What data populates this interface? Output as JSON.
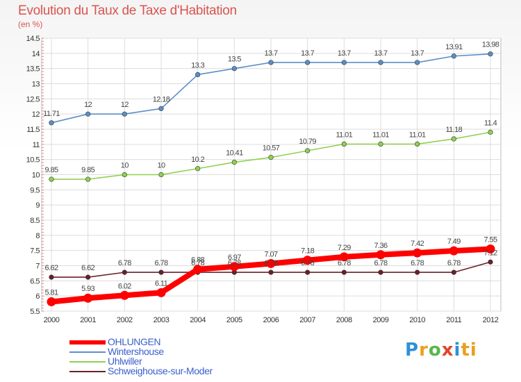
{
  "chart_data": {
    "type": "line",
    "title": "Evolution du Taux de Taxe d'Habitation",
    "subtitle": "(en %)",
    "categories": [
      "2000",
      "2001",
      "2002",
      "2003",
      "2004",
      "2005",
      "2006",
      "2007",
      "2008",
      "2009",
      "2010",
      "2011",
      "2012"
    ],
    "y_ticks": [
      "5.5",
      "6",
      "6.5",
      "7",
      "7.5",
      "8",
      "8.5",
      "9",
      "9.5",
      "10",
      "10.5",
      "11",
      "11.5",
      "12",
      "12.5",
      "13",
      "13.5",
      "14",
      "14.5"
    ],
    "ylim": [
      5.5,
      14.5
    ],
    "grid": true,
    "legend_position": "bottom-left",
    "series": [
      {
        "name": "OHLUNGEN",
        "color": "#ff0000",
        "values": [
          5.81,
          5.93,
          6.02,
          6.11,
          6.88,
          6.97,
          7.07,
          7.18,
          7.29,
          7.36,
          7.42,
          7.49,
          7.55
        ],
        "labels": [
          "5.81",
          "5.93",
          "6.02",
          "6.11",
          "6.88",
          "6.97",
          "7.07",
          "7.18",
          "7.29",
          "7.36",
          "7.42",
          "7.49",
          "7.55"
        ]
      },
      {
        "name": "Wintershouse",
        "color": "#5b8fc7",
        "values": [
          11.71,
          12,
          12,
          12.18,
          13.3,
          13.5,
          13.7,
          13.7,
          13.7,
          13.7,
          13.7,
          13.91,
          13.98
        ],
        "labels": [
          "11.71",
          "12",
          "12",
          "12.18",
          "13.3",
          "13.5",
          "13.7",
          "13.7",
          "13.7",
          "13.7",
          "13.7",
          "13.91",
          "13.98"
        ]
      },
      {
        "name": "Uhlwiller",
        "color": "#8fd14f",
        "values": [
          9.85,
          9.85,
          10,
          10,
          10.2,
          10.41,
          10.57,
          10.79,
          11.01,
          11.01,
          11.01,
          11.18,
          11.4
        ],
        "labels": [
          "9.85",
          "9.85",
          "10",
          "10",
          "10.2",
          "10.41",
          "10.57",
          "10.79",
          "11.01",
          "11.01",
          "11.01",
          "11.18",
          "11.4"
        ]
      },
      {
        "name": "Schweighouse-sur-Moder",
        "color": "#6b1f2a",
        "values": [
          6.62,
          6.62,
          6.78,
          6.78,
          6.78,
          6.78,
          6.78,
          6.78,
          6.78,
          6.78,
          6.78,
          6.78,
          7.12
        ],
        "labels": [
          "6.62",
          "6.62",
          "6.78",
          "6.78",
          "6.78",
          "6.78",
          "6.78",
          "6.78",
          "6.78",
          "6.78",
          "6.78",
          "6.78",
          "7.12"
        ]
      }
    ]
  },
  "logo": {
    "letters": [
      "P",
      "r",
      "o",
      "x",
      "i",
      "ti"
    ]
  }
}
